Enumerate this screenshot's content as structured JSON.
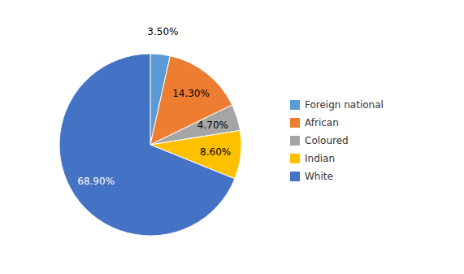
{
  "chart_data": {
    "type": "pie",
    "categories": [
      "Foreign national",
      "African",
      "Coloured",
      "Indian",
      "White"
    ],
    "values": [
      3.5,
      14.3,
      4.7,
      8.6,
      68.9
    ],
    "value_labels": [
      "3.50%",
      "14.30%",
      "4.70%",
      "8.60%",
      "68.90%"
    ],
    "colors": [
      "#5B9BD5",
      "#ED7D31",
      "#A5A5A5",
      "#FFC000",
      "#4472C4"
    ],
    "data_labels": true,
    "legend": "right"
  }
}
